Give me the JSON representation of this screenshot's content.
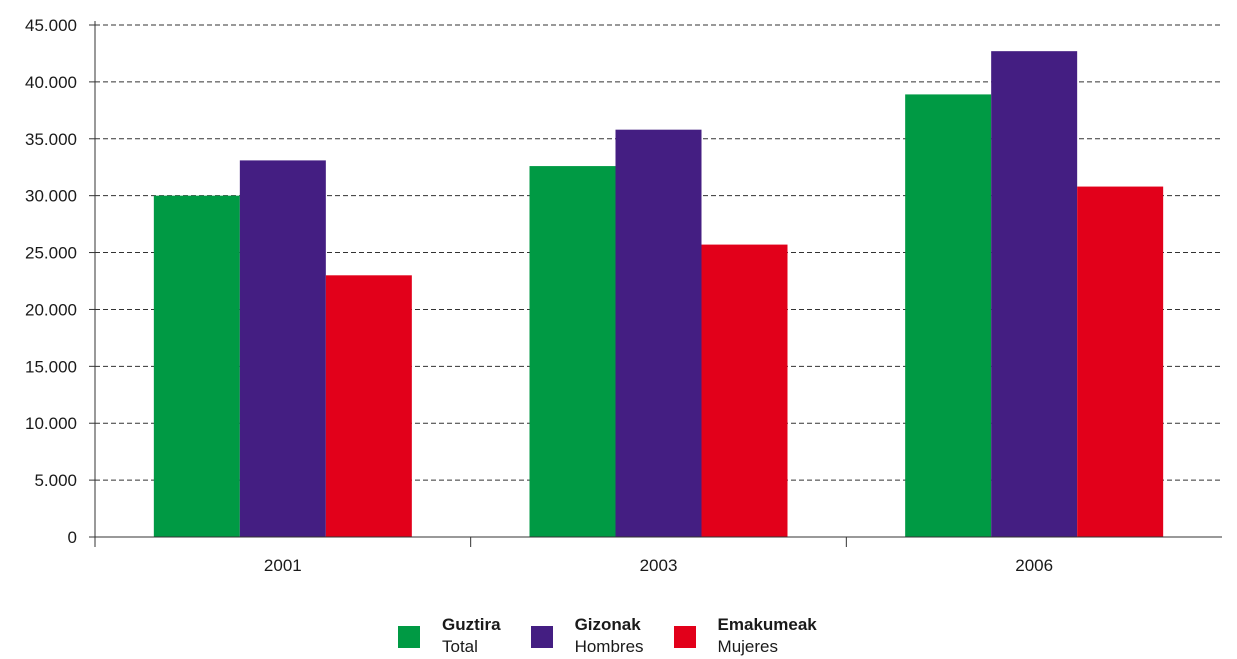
{
  "chart_data": {
    "type": "bar",
    "title": "",
    "xlabel": "",
    "ylabel": "",
    "categories": [
      "2001",
      "2003",
      "2006"
    ],
    "ylim": [
      0,
      45000
    ],
    "yticks": [
      0,
      5000,
      10000,
      15000,
      20000,
      25000,
      30000,
      35000,
      40000,
      45000
    ],
    "ytick_labels": [
      "0",
      "5.000",
      "10.000",
      "15.000",
      "20.000",
      "25.000",
      "30.000",
      "35.000",
      "40.000",
      "45.000"
    ],
    "grid": "horizontal dashed",
    "legend_placement": "bottom-center",
    "series": [
      {
        "name": "Guztira",
        "name_secondary": "Total",
        "color": "#009a44",
        "values": [
          30000,
          32600,
          38900
        ]
      },
      {
        "name": "Gizonak",
        "name_secondary": "Hombres",
        "color": "#441e82",
        "values": [
          33100,
          35800,
          42700
        ]
      },
      {
        "name": "Emakumeak",
        "name_secondary": "Mujeres",
        "color": "#e2001a",
        "values": [
          23000,
          25700,
          30800
        ]
      }
    ]
  }
}
